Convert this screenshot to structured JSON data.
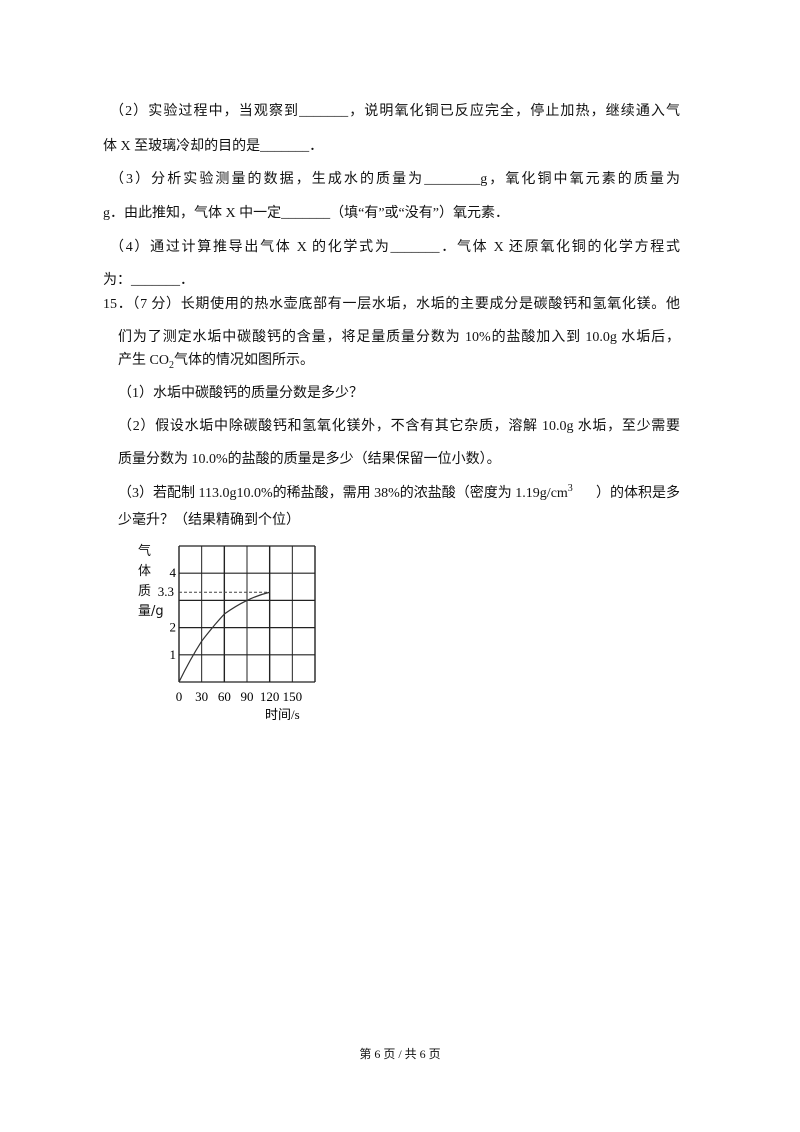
{
  "lines": [
    "（2）实验过程中，当观察到_______，说明氧化铜已反应完全，停止加热，继续通入气",
    "体 X 至玻璃冷却的目的是_______．",
    "（3）分析实验测量的数据，生成水的质量为________g，氧化铜中氧元素的质量为",
    "g．由此推知，气体 X 中一定_______（填“有”或“没有”）氧元素．",
    "（4）通过计算推导出气体 X 的化学式为_______．气体 X 还原氧化铜的化学方程式",
    "为：_______．",
    "15．（7 分）长期使用的热水壶底部有一层水垢，水垢的主要成分是碳酸钙和氢氧化镁。他",
    "们为了测定水垢中碳酸钙的含量，将足量质量分数为 10%的盐酸加入到 10.0g 水垢后，",
    "产生 CO",
    "2",
    "气体的情况如图所示。",
    "（1）水垢中碳酸钙的质量分数是多少？",
    "（2）假设水垢中除碳酸钙和氢氧化镁外，不含有其它杂质，溶解 10.0g 水垢，至少需要",
    "质量分数为 10.0%的盐酸的质量是多少（结果保留一位小数）。",
    "（3）若配制 113.0g10.0%的稀盐酸，需用 38%的浓盐酸（密度为 1.19g/cm",
    "3",
    "）的体积是多",
    "少毫升？（结果精确到个位）"
  ],
  "chart_data": {
    "type": "line",
    "ylabel": "气体质量/g",
    "xlabel": "时间/s",
    "x": [
      0,
      30,
      60,
      90,
      120
    ],
    "y": [
      0,
      1.5,
      2.5,
      3.0,
      3.3
    ],
    "xlim": [
      0,
      180
    ],
    "ylim": [
      0,
      5
    ],
    "xticks": [
      "0",
      "30",
      "60",
      "90",
      "120",
      "150"
    ],
    "yticks": [
      "1",
      "2",
      "3.3",
      "4"
    ],
    "dashed_reference": 3.3,
    "grid": true
  },
  "footer": "第 6 页 / 共 6 页"
}
